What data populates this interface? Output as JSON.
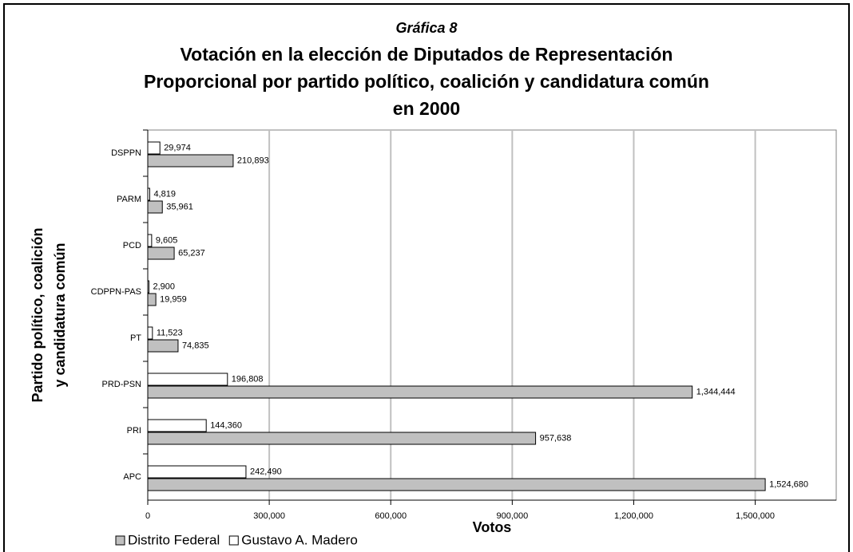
{
  "chart_data": {
    "type": "hbar",
    "label": "Gráfica 8",
    "title": [
      "Votación en la elección de Diputados de Representación",
      "Proporcional por partido político, coalición y candidatura común",
      "en 2000"
    ],
    "xlabel": "Votos",
    "ylabel": [
      "Partido político, coalición",
      "y candidatura común"
    ],
    "categories": [
      "DSPPN",
      "PARM",
      "PCD",
      "CDPPN-PAS",
      "PT",
      "PRD-PSN",
      "PRI",
      "APC"
    ],
    "series": [
      {
        "name": "Distrito Federal",
        "color": "#c0c0c0",
        "values": [
          210893,
          35961,
          65237,
          19959,
          74835,
          1344444,
          957638,
          1524680
        ],
        "value_labels": [
          "210,893",
          "35,961",
          "65,237",
          "19,959",
          "74,835",
          "1,344,444",
          "957,638",
          "1,524,680"
        ]
      },
      {
        "name": "Gustavo A. Madero",
        "color": "#ffffff",
        "values": [
          29974,
          4819,
          9605,
          2900,
          11523,
          196808,
          144360,
          242490
        ],
        "value_labels": [
          "29,974",
          "4,819",
          "9,605",
          "2,900",
          "11,523",
          "196,808",
          "144,360",
          "242,490"
        ]
      }
    ],
    "xlim": [
      0,
      1700000
    ],
    "xticks": [
      0,
      {
        "value": 300000,
        "label": "300,000"
      },
      {
        "value": 600000,
        "label": "600,000"
      },
      {
        "value": 900000,
        "label": "900,000"
      },
      {
        "value": 1200000,
        "label": "1,200,000"
      },
      {
        "value": 1500000,
        "label": "1,500,000"
      }
    ],
    "grid": true,
    "legend": "bottom-left"
  }
}
